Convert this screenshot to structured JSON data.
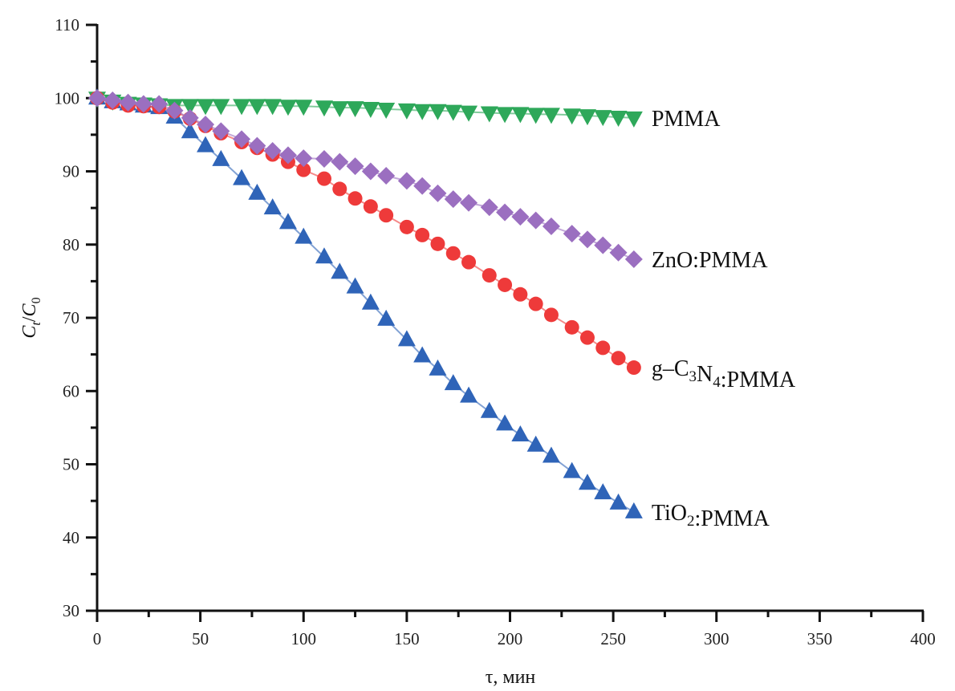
{
  "chart_data": {
    "type": "scatter",
    "title": "",
    "xlabel": "τ, мин",
    "ylabel": {
      "main": "C",
      "sub1": "t",
      "slash": "/",
      "main2": "C",
      "sub2": "0"
    },
    "xlim": [
      0,
      400
    ],
    "ylim": [
      30,
      110
    ],
    "x_ticks": [
      0,
      50,
      100,
      150,
      200,
      250,
      300,
      350,
      400
    ],
    "y_ticks": [
      30,
      40,
      50,
      60,
      70,
      80,
      90,
      100,
      110
    ],
    "x_tick_labels": [
      "0",
      "50",
      "100",
      "150",
      "200",
      "250",
      "300",
      "350",
      "400"
    ],
    "y_tick_labels": [
      "30",
      "40",
      "50",
      "60",
      "70",
      "80",
      "90",
      "100",
      "110"
    ],
    "grid": false,
    "legend": "inline-right",
    "x": [
      0,
      7.5,
      15,
      22.5,
      30,
      37.5,
      45,
      52.5,
      60,
      70,
      77.5,
      85,
      92.5,
      100,
      110,
      117.5,
      125,
      132.5,
      140,
      150,
      157.5,
      165,
      172.5,
      180,
      190,
      197.5,
      205,
      212.5,
      220,
      230,
      237.5,
      245,
      252.5,
      260
    ],
    "series": [
      {
        "name": "PMMA",
        "label_parts": [
          {
            "t": "PMMA"
          }
        ],
        "color": "#2ea85a",
        "marker": "triangle-down",
        "values": [
          100,
          99.6,
          99.3,
          99.2,
          99.1,
          99.0,
          99.0,
          99.0,
          99.0,
          99.0,
          99.0,
          99.0,
          98.9,
          98.9,
          98.8,
          98.7,
          98.7,
          98.6,
          98.5,
          98.4,
          98.3,
          98.3,
          98.2,
          98.1,
          98.0,
          97.9,
          97.9,
          97.8,
          97.8,
          97.7,
          97.6,
          97.5,
          97.4,
          97.3
        ]
      },
      {
        "name": "ZnO:PMMA",
        "label_parts": [
          {
            "t": "ZnO:PMMA"
          }
        ],
        "color": "#9b6fc0",
        "marker": "diamond",
        "values": [
          100,
          99.7,
          99.4,
          99.2,
          99.2,
          98.3,
          97.3,
          96.4,
          95.5,
          94.4,
          93.5,
          92.8,
          92.2,
          91.8,
          91.7,
          91.3,
          90.7,
          90.0,
          89.4,
          88.7,
          88.0,
          87.0,
          86.2,
          85.7,
          85.1,
          84.4,
          83.8,
          83.3,
          82.5,
          81.5,
          80.7,
          79.9,
          78.9,
          78.0
        ]
      },
      {
        "name": "g–C3N4:PMMA",
        "label_parts": [
          {
            "t": "g–C"
          },
          {
            "t": "3",
            "sub": true
          },
          {
            "t": "N"
          },
          {
            "t": "4",
            "sub": true
          },
          {
            "t": ":PMMA"
          }
        ],
        "color": "#ee3a3a",
        "marker": "circle",
        "values": [
          100,
          99.4,
          99.0,
          98.9,
          98.8,
          98.2,
          97.2,
          96.2,
          95.2,
          94.0,
          93.2,
          92.3,
          91.3,
          90.2,
          89.0,
          87.6,
          86.3,
          85.2,
          84.0,
          82.4,
          81.3,
          80.1,
          78.8,
          77.6,
          75.8,
          74.5,
          73.2,
          71.9,
          70.4,
          68.7,
          67.3,
          65.9,
          64.5,
          63.2
        ]
      },
      {
        "name": "TiO2:PMMA",
        "label_parts": [
          {
            "t": "TiO"
          },
          {
            "t": "2",
            "sub": true
          },
          {
            "t": ":PMMA"
          }
        ],
        "color": "#2f64b8",
        "marker": "triangle-up",
        "values": [
          100,
          99.5,
          99.2,
          98.9,
          98.7,
          97.4,
          95.4,
          93.5,
          91.6,
          89.0,
          87.0,
          85.0,
          83.0,
          81.0,
          78.3,
          76.2,
          74.2,
          72.0,
          69.8,
          67.0,
          64.8,
          63.0,
          61.0,
          59.3,
          57.2,
          55.5,
          54.0,
          52.6,
          51.1,
          49.0,
          47.4,
          46.1,
          44.7,
          43.5
        ]
      }
    ]
  }
}
